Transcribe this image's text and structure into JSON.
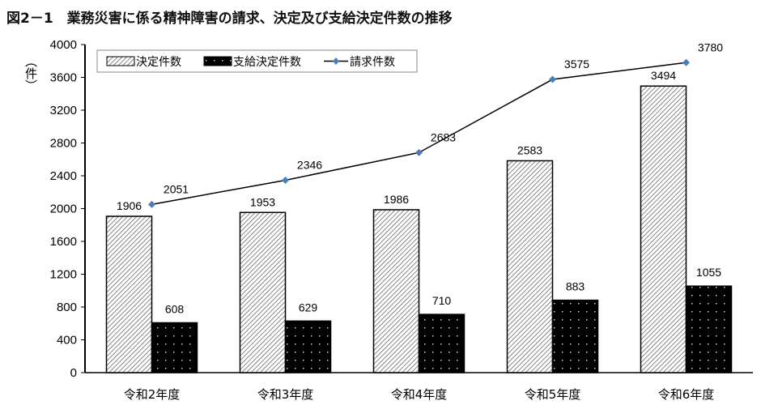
{
  "title": "図2－1　業務災害に係る精神障害の請求、決定及び支給決定件数の推移",
  "chart_data": {
    "type": "bar",
    "title": "図2－1　業務災害に係る精神障害の請求、決定及び支給決定件数の推移",
    "ylabel": "（件）",
    "ylim": [
      0,
      4000
    ],
    "yticks": [
      0,
      400,
      800,
      1200,
      1600,
      2000,
      2400,
      2800,
      3200,
      3600,
      4000
    ],
    "categories": [
      "令和2年度",
      "令和3年度",
      "令和4年度",
      "令和5年度",
      "令和6年度"
    ],
    "legend_position": "top-left",
    "grid": false,
    "series": [
      {
        "name": "決定件数",
        "type": "bar",
        "pattern": "diagonal-hatch",
        "values": [
          1906,
          1953,
          1986,
          2583,
          3494
        ]
      },
      {
        "name": "支給決定件数",
        "type": "bar",
        "pattern": "black-dotted",
        "values": [
          608,
          629,
          710,
          883,
          1055
        ]
      },
      {
        "name": "請求件数",
        "type": "line",
        "color": "#4a7ebb",
        "values": [
          2051,
          2346,
          2683,
          3575,
          3780
        ]
      }
    ]
  }
}
